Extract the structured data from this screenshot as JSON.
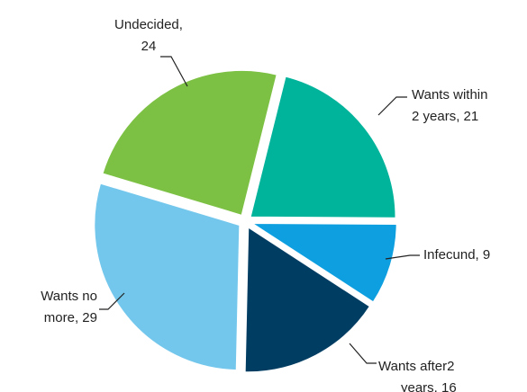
{
  "chart_data": {
    "type": "pie",
    "values": [
      21,
      9,
      16,
      29,
      24
    ],
    "value_labels": [
      [
        "Wants within",
        "2 years, 21"
      ],
      [
        "Infecund, 9"
      ],
      [
        "Wants after2",
        "years, 16"
      ],
      [
        "Wants no",
        "more, 29"
      ],
      [
        "Undecided,",
        "24"
      ]
    ],
    "colors": [
      "#00b39b",
      "#0d9fdf",
      "#003d63",
      "#74c7ec",
      "#7cc143"
    ]
  }
}
